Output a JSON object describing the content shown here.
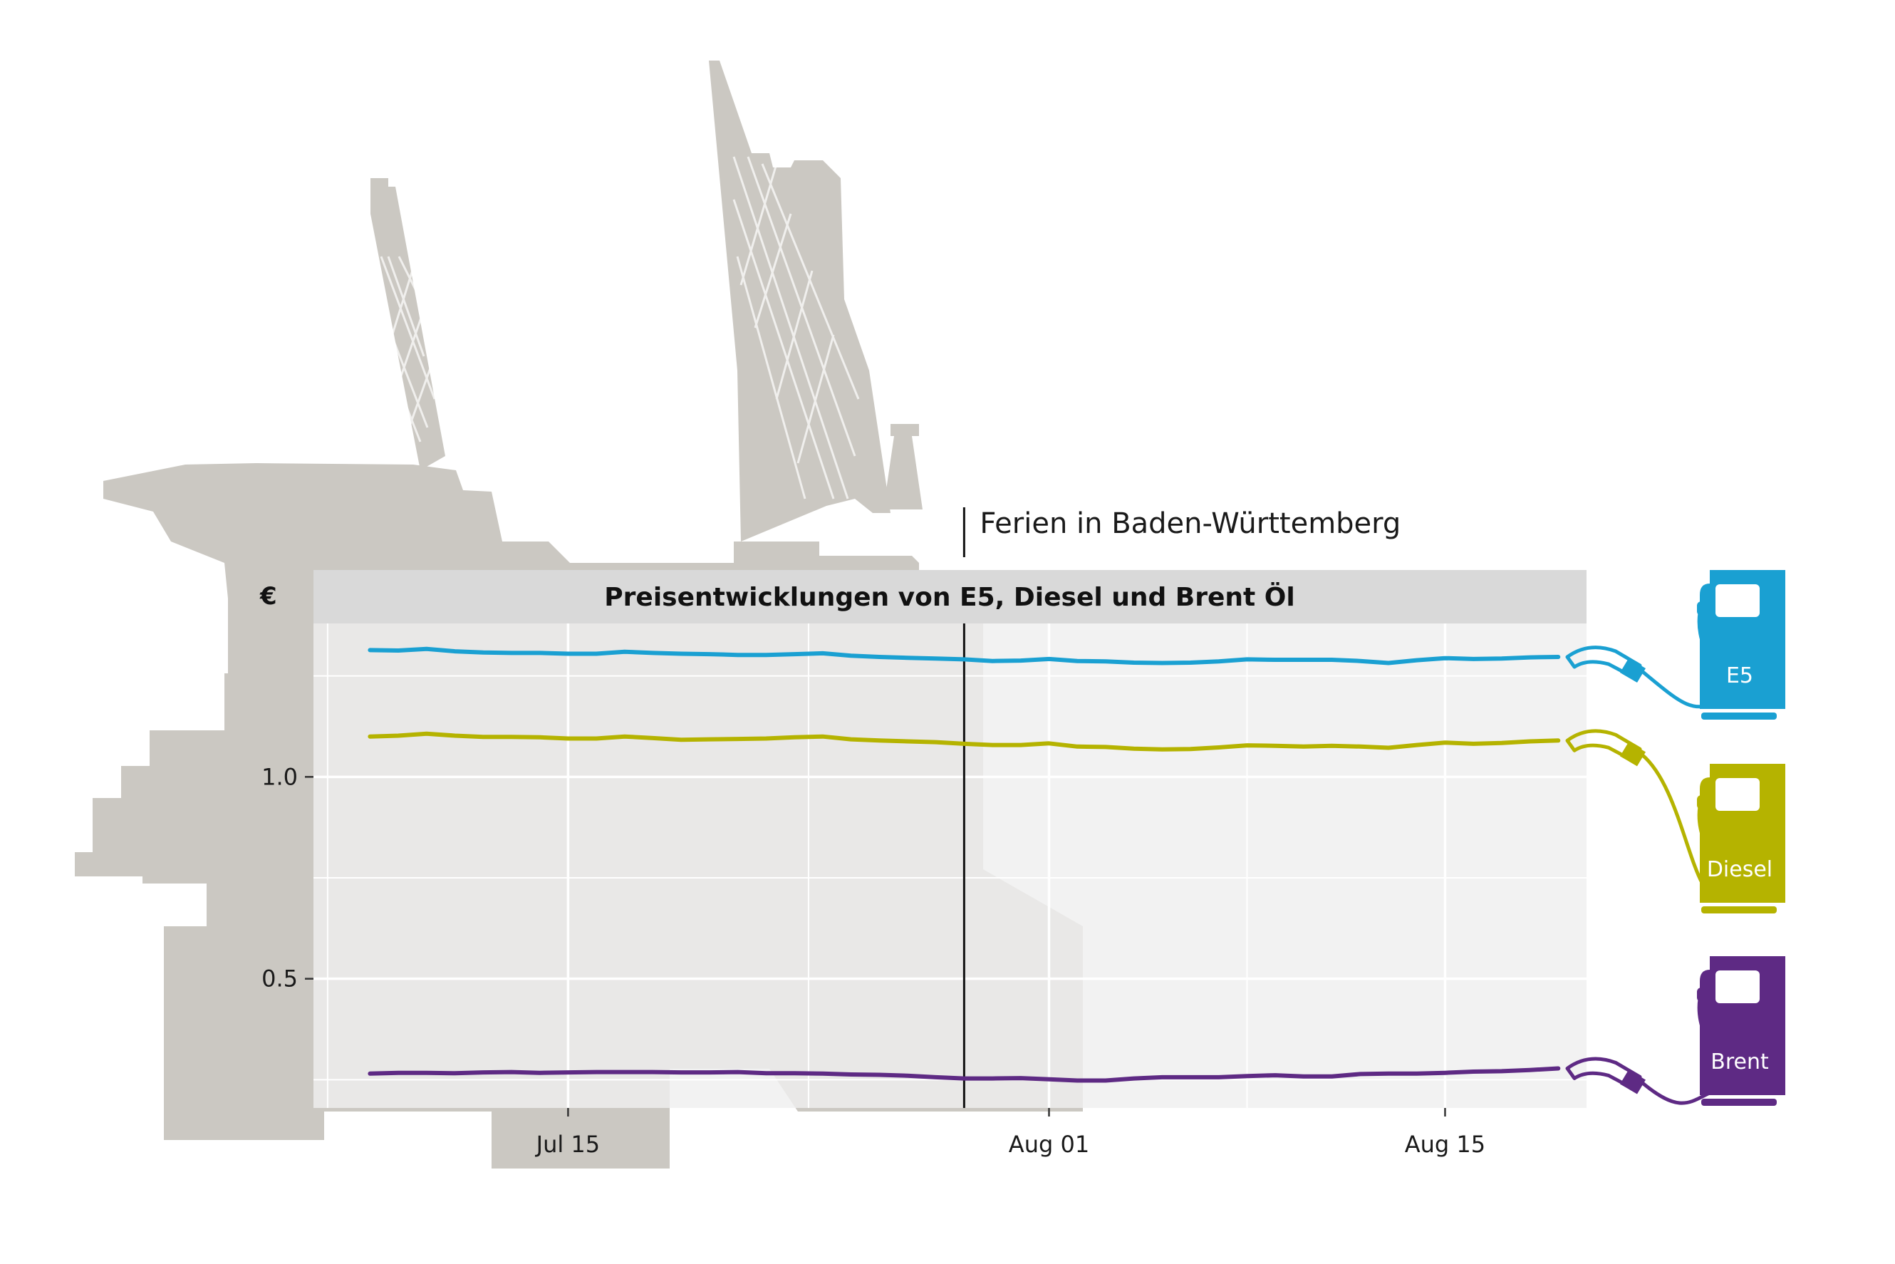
{
  "chart_data": {
    "type": "line",
    "title": "Preisentwicklungen von E5, Diesel und Brent Öl",
    "unit_label": "€",
    "x_tick_labels": [
      "Jul 15",
      "Aug 01",
      "Aug 15"
    ],
    "x_tick_dates": [
      "2015-07-15",
      "2015-08-01",
      "2015-08-15"
    ],
    "x_range": [
      "2015-07-06",
      "2015-08-20"
    ],
    "y_tick_labels": [
      "0.5",
      "1.0"
    ],
    "y_ticks": [
      0.5,
      1.0
    ],
    "ylim": [
      0.18,
      1.38
    ],
    "grid": true,
    "annotation": {
      "label": "Ferien in Baden-Württemberg",
      "date": "2015-07-29"
    },
    "x": [
      "2015-07-08",
      "2015-07-09",
      "2015-07-10",
      "2015-07-11",
      "2015-07-12",
      "2015-07-13",
      "2015-07-14",
      "2015-07-15",
      "2015-07-16",
      "2015-07-17",
      "2015-07-18",
      "2015-07-19",
      "2015-07-20",
      "2015-07-21",
      "2015-07-22",
      "2015-07-23",
      "2015-07-24",
      "2015-07-25",
      "2015-07-26",
      "2015-07-27",
      "2015-07-28",
      "2015-07-29",
      "2015-07-30",
      "2015-07-31",
      "2015-08-01",
      "2015-08-02",
      "2015-08-03",
      "2015-08-04",
      "2015-08-05",
      "2015-08-06",
      "2015-08-07",
      "2015-08-08",
      "2015-08-09",
      "2015-08-10",
      "2015-08-11",
      "2015-08-12",
      "2015-08-13",
      "2015-08-14",
      "2015-08-15",
      "2015-08-16",
      "2015-08-17",
      "2015-08-18",
      "2015-08-19"
    ],
    "series": [
      {
        "name": "E5",
        "color": "#1aa0d2",
        "values": [
          1.314,
          1.313,
          1.317,
          1.311,
          1.308,
          1.307,
          1.307,
          1.305,
          1.305,
          1.31,
          1.307,
          1.305,
          1.304,
          1.302,
          1.302,
          1.304,
          1.306,
          1.3,
          1.297,
          1.295,
          1.293,
          1.291,
          1.287,
          1.288,
          1.292,
          1.287,
          1.286,
          1.283,
          1.282,
          1.283,
          1.286,
          1.291,
          1.29,
          1.29,
          1.29,
          1.287,
          1.282,
          1.289,
          1.294,
          1.292,
          1.293,
          1.296,
          1.297
        ]
      },
      {
        "name": "Diesel",
        "color": "#b5b300",
        "values": [
          1.1,
          1.102,
          1.107,
          1.102,
          1.099,
          1.099,
          1.098,
          1.095,
          1.095,
          1.1,
          1.096,
          1.092,
          1.093,
          1.094,
          1.095,
          1.098,
          1.1,
          1.093,
          1.09,
          1.088,
          1.086,
          1.082,
          1.079,
          1.079,
          1.083,
          1.075,
          1.074,
          1.07,
          1.068,
          1.069,
          1.073,
          1.078,
          1.077,
          1.075,
          1.077,
          1.075,
          1.072,
          1.079,
          1.085,
          1.082,
          1.084,
          1.088,
          1.09
        ]
      },
      {
        "name": "Brent",
        "color": "#5e2a84",
        "values": [
          0.265,
          0.267,
          0.267,
          0.266,
          0.268,
          0.269,
          0.267,
          0.268,
          0.269,
          0.269,
          0.269,
          0.268,
          0.268,
          0.269,
          0.266,
          0.266,
          0.265,
          0.263,
          0.262,
          0.26,
          0.256,
          0.253,
          0.253,
          0.254,
          0.251,
          0.248,
          0.248,
          0.253,
          0.256,
          0.256,
          0.256,
          0.259,
          0.261,
          0.258,
          0.258,
          0.264,
          0.265,
          0.265,
          0.267,
          0.27,
          0.271,
          0.274,
          0.278
        ]
      }
    ]
  },
  "pumps": [
    {
      "label": "E5",
      "color": "#1aa0d2"
    },
    {
      "label": "Diesel",
      "color": "#b5b300"
    },
    {
      "label": "Brent",
      "color": "#5e2a84"
    }
  ]
}
